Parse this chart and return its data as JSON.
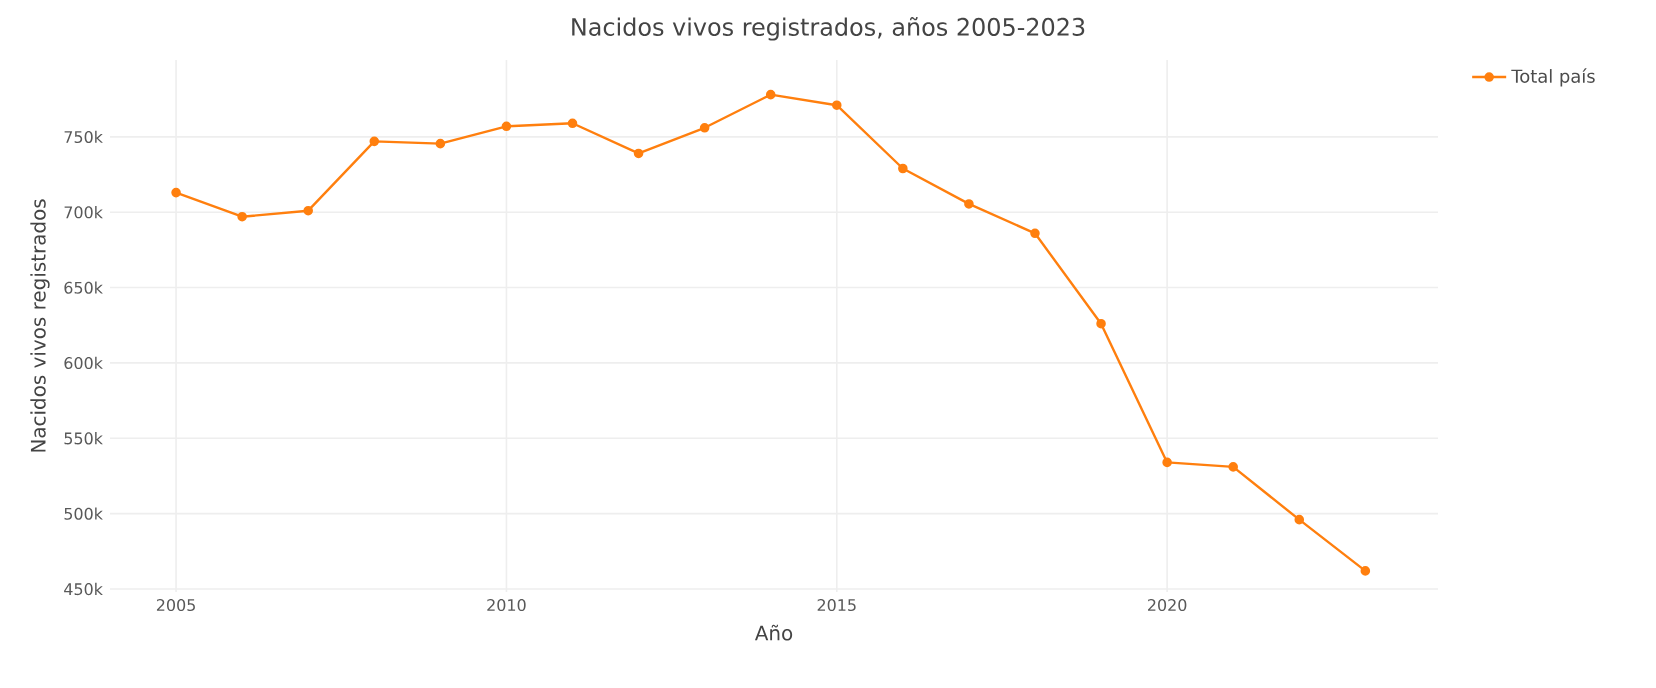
{
  "chart_data": {
    "type": "line",
    "title": "Nacidos vivos registrados, años 2005-2023",
    "xlabel": "Año",
    "ylabel": "Nacidos vivos registrados",
    "x": [
      2005,
      2006,
      2007,
      2008,
      2009,
      2010,
      2011,
      2012,
      2013,
      2014,
      2015,
      2016,
      2017,
      2018,
      2019,
      2020,
      2021,
      2022,
      2023
    ],
    "series": [
      {
        "name": "Total país",
        "color": "#ff7f0e",
        "values": [
          713000,
          697000,
          701000,
          747000,
          745500,
          757000,
          759000,
          739000,
          756000,
          778000,
          771000,
          729000,
          705500,
          686000,
          626000,
          534000,
          531000,
          496000,
          462000
        ]
      }
    ],
    "xlim": [
      2004,
      2024.1
    ],
    "ylim": [
      448000,
      801000
    ],
    "xticks": [
      2005,
      2010,
      2015,
      2020
    ],
    "yticks": [
      {
        "value": 450000,
        "label": "450k"
      },
      {
        "value": 500000,
        "label": "500k"
      },
      {
        "value": 550000,
        "label": "550k"
      },
      {
        "value": 600000,
        "label": "600k"
      },
      {
        "value": 650000,
        "label": "650k"
      },
      {
        "value": 700000,
        "label": "700k"
      },
      {
        "value": 750000,
        "label": "750k"
      }
    ],
    "grid": true,
    "legend": "top right",
    "marker": "circle",
    "line_style": "solid"
  }
}
